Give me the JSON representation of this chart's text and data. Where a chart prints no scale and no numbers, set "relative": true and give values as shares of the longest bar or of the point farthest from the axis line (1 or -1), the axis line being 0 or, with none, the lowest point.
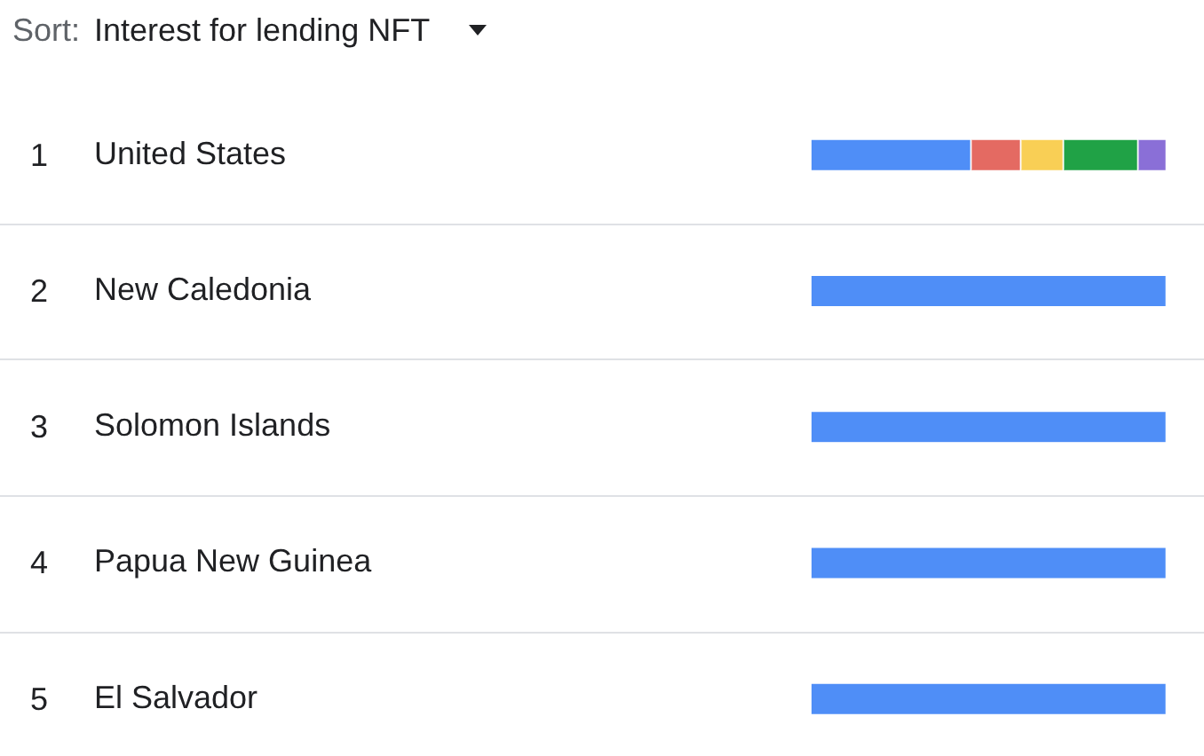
{
  "chart_data": {
    "type": "bar",
    "orientation": "horizontal",
    "stacked": true,
    "relative": true,
    "title": "Interest for lending NFT",
    "categories": [
      "United States",
      "New Caledonia",
      "Solomon Islands",
      "Papua New Guinea",
      "El Salvador"
    ],
    "series": [
      {
        "color": "#4f8ef7",
        "values": [
          0.45,
          1,
          1,
          1,
          1
        ]
      },
      {
        "color": "#e46a62",
        "values": [
          0.14,
          null,
          null,
          null,
          null
        ]
      },
      {
        "color": "#f9cf55",
        "values": [
          0.12,
          null,
          null,
          null,
          null
        ]
      },
      {
        "color": "#20a246",
        "values": [
          0.21,
          null,
          null,
          null,
          null
        ]
      },
      {
        "color": "#8a6fd7",
        "values": [
          0.08,
          null,
          null,
          null,
          null
        ]
      }
    ],
    "annotations": [
      "Sort:",
      "1",
      "2",
      "3",
      "4",
      "5"
    ],
    "grid": "y"
  }
}
